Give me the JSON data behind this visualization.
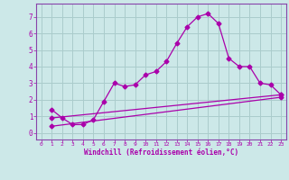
{
  "xlabel": "Windchill (Refroidissement éolien,°C)",
  "bg_color": "#cce8e8",
  "grid_color": "#aacccc",
  "line_color": "#aa00aa",
  "spine_color": "#8844aa",
  "xlim": [
    -0.5,
    23.5
  ],
  "ylim": [
    -0.4,
    7.8
  ],
  "xticks": [
    0,
    1,
    2,
    3,
    4,
    5,
    6,
    7,
    8,
    9,
    10,
    11,
    12,
    13,
    14,
    15,
    16,
    17,
    18,
    19,
    20,
    21,
    22,
    23
  ],
  "yticks": [
    0,
    1,
    2,
    3,
    4,
    5,
    6,
    7
  ],
  "series1_x": [
    1,
    2,
    3,
    4,
    5,
    6,
    7,
    8,
    9,
    10,
    11,
    12,
    13,
    14,
    15,
    16,
    17,
    18,
    19,
    20,
    21,
    22,
    23
  ],
  "series1_y": [
    1.4,
    0.9,
    0.5,
    0.5,
    0.8,
    1.9,
    3.0,
    2.8,
    2.9,
    3.5,
    3.7,
    4.3,
    5.4,
    6.4,
    7.0,
    7.2,
    6.6,
    4.5,
    4.0,
    4.0,
    3.0,
    2.9,
    2.3
  ],
  "series2_x": [
    1,
    23
  ],
  "series2_y": [
    0.9,
    2.3
  ],
  "series3_x": [
    1,
    23
  ],
  "series3_y": [
    0.4,
    2.15
  ],
  "markersize": 2.5,
  "linewidth": 0.9
}
